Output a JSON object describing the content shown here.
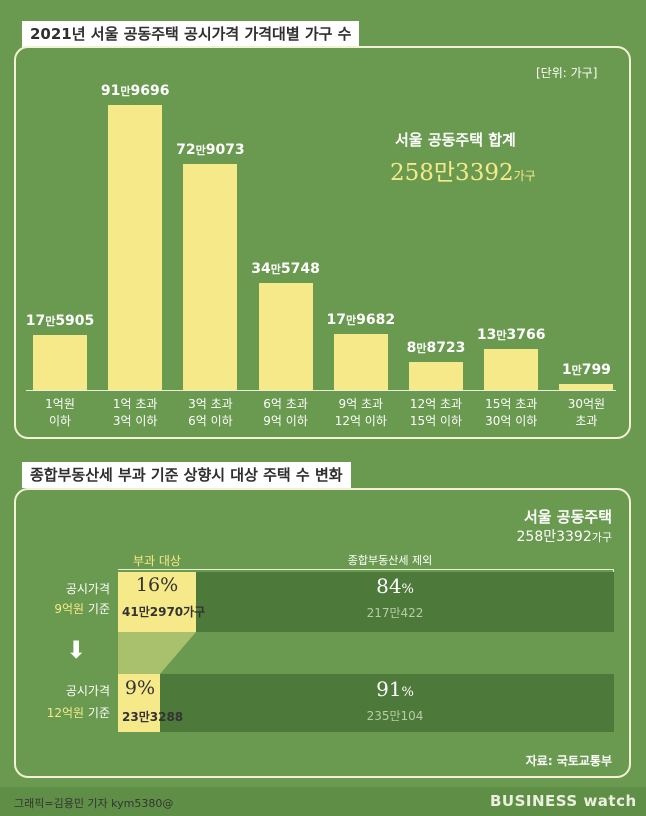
{
  "chart1": {
    "title": "2021년 서울 공동주택 공시가격 가격대별 가구 수",
    "unit": "[단위: 가구]",
    "total_label": "서울 공동주택 합계",
    "total_value": "258만3392",
    "total_unit": "가구"
  },
  "chart_data": [
    {
      "type": "bar",
      "title": "2021년 서울 공동주택 공시가격 가격대별 가구 수",
      "unit": "가구",
      "categories": [
        "1억원 이하",
        "1억 초과 3억 이하",
        "3억 초과 6억 이하",
        "6억 초과 9억 이하",
        "9억 초과 12억 이하",
        "12억 초과 15억 이하",
        "15억 초과 30억 이하",
        "30억원 초과"
      ],
      "category_lines": [
        [
          "1억원",
          "이하"
        ],
        [
          "1억 초과",
          "3억 이하"
        ],
        [
          "3억 초과",
          "6억 이하"
        ],
        [
          "6억 초과",
          "9억 이하"
        ],
        [
          "9억 초과",
          "12억 이하"
        ],
        [
          "12억 초과",
          "15억 이하"
        ],
        [
          "15억 초과",
          "30억 이하"
        ],
        [
          "30억원",
          "초과"
        ]
      ],
      "values": [
        175905,
        919696,
        729073,
        345748,
        179682,
        88723,
        133766,
        10799
      ],
      "value_labels": [
        [
          "17",
          "5905"
        ],
        [
          "91",
          "9696"
        ],
        [
          "72",
          "9073"
        ],
        [
          "34",
          "5748"
        ],
        [
          "17",
          "9682"
        ],
        [
          "8",
          "8723"
        ],
        [
          "13",
          "3766"
        ],
        [
          "1",
          "799"
        ]
      ],
      "ylim": [
        0,
        1000000
      ],
      "grid": false
    },
    {
      "type": "bar",
      "orientation": "horizontal-stacked",
      "title": "종합부동산세 부과 기준 상향시 대상 주택 수 변화",
      "series": [
        {
          "name": "부과 대상",
          "values": [
            412970,
            233288
          ],
          "percent": [
            16,
            9
          ]
        },
        {
          "name": "종합부동산세 제외",
          "values": [
            2170422,
            2350104
          ],
          "percent": [
            84,
            91
          ]
        }
      ],
      "categories": [
        "공시가격 9억원 기준",
        "공시가격 12억원 기준"
      ]
    }
  ],
  "chart2": {
    "title": "종합부동산세 부과 기준 상향시 대상 주택 수 변화",
    "seoul_label": "서울 공동주택",
    "seoul_total": "258만3392",
    "seoul_unit": "가구",
    "legend_taxed": "부과 대상",
    "legend_excluded": "종합부동산세 제외",
    "rows": [
      {
        "label_top": "공시가격",
        "label_amt": "9억원",
        "label_suffix": "기준",
        "taxed_pct": "16",
        "taxed_count": "41만2970",
        "taxed_unit": "가구",
        "excl_pct": "84",
        "excl_count": "217만422"
      },
      {
        "label_top": "공시가격",
        "label_amt": "12억원",
        "label_suffix": "기준",
        "taxed_pct": "9",
        "taxed_count": "23만3288",
        "taxed_unit": "",
        "excl_pct": "91",
        "excl_count": "235만104"
      }
    ],
    "pct_sign": "%",
    "source": "자료: 국토교통부"
  },
  "footer": {
    "credit": "그래픽=김용민 기자 kym5380@",
    "logo": "BUSINESS watch"
  },
  "colors": {
    "background": "#6a9a4f",
    "bar": "#f6e98a",
    "excluded_bar": "#4d7a3b",
    "connector": "#a9c06c"
  }
}
